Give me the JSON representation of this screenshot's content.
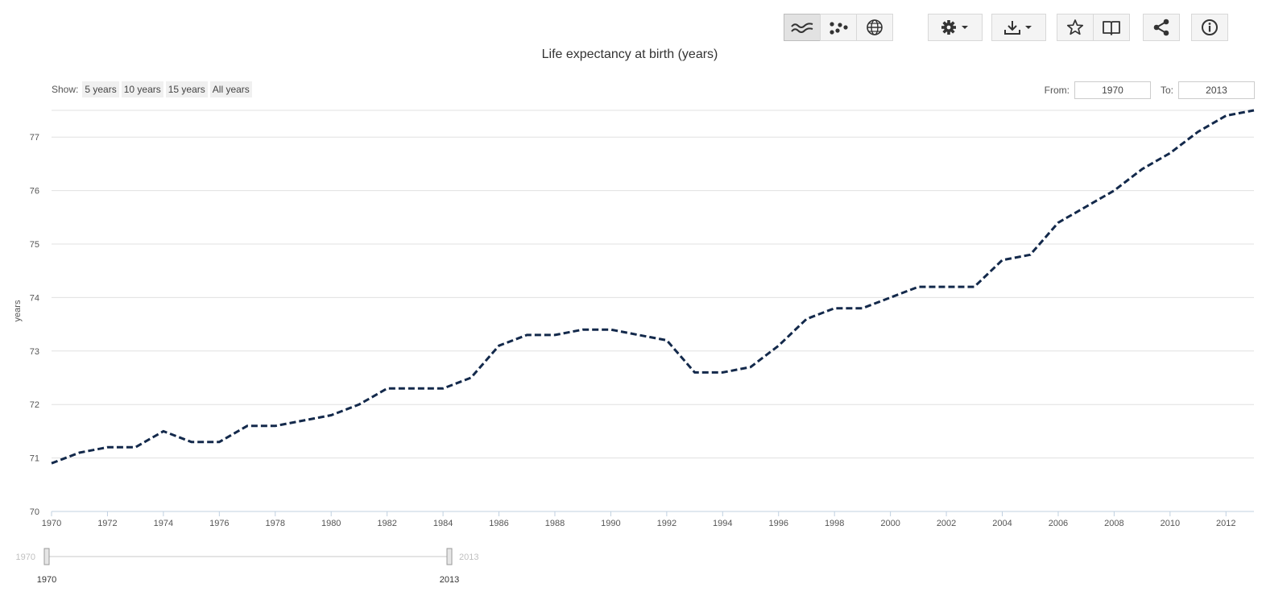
{
  "toolbar": {
    "view_buttons": [
      {
        "icon": "line-chart-icon",
        "active": true
      },
      {
        "icon": "scatter-icon",
        "active": false
      },
      {
        "icon": "globe-icon",
        "active": false
      }
    ],
    "settings_icon": "gear-icon",
    "download_icon": "download-icon",
    "favorite_icon": "star-icon",
    "book_icon": "book-icon",
    "share_icon": "share-icon",
    "info_icon": "info-icon"
  },
  "show": {
    "label": "Show:",
    "options": [
      "5 years",
      "10 years",
      "15 years",
      "All years"
    ]
  },
  "range": {
    "from_label": "From:",
    "from_value": "1970",
    "to_label": "To:",
    "to_value": "2013"
  },
  "navigator": {
    "min_label": "1970",
    "max_label": "2013",
    "start_label": "1970",
    "end_label": "2013"
  },
  "colors": {
    "line": "#13294b",
    "grid": "#e0e0e0",
    "axis": "#c0d0e0"
  },
  "chart_data": {
    "type": "line",
    "title": "Life expectancy at birth (years)",
    "xlabel": "",
    "ylabel": "years",
    "xlim": [
      1970,
      2013
    ],
    "ylim": [
      70,
      77.5
    ],
    "yticks": [
      70,
      71,
      72,
      73,
      74,
      75,
      76,
      77
    ],
    "xticks": [
      1970,
      1972,
      1974,
      1976,
      1978,
      1980,
      1982,
      1984,
      1986,
      1988,
      1990,
      1992,
      1994,
      1996,
      1998,
      2000,
      2002,
      2004,
      2006,
      2008,
      2010,
      2012
    ],
    "grid": true,
    "line_style": "dashed",
    "series": [
      {
        "x": [
          1970,
          1971,
          1972,
          1973,
          1974,
          1975,
          1976,
          1977,
          1978,
          1979,
          1980,
          1981,
          1982,
          1983,
          1984,
          1985,
          1986,
          1987,
          1988,
          1989,
          1990,
          1991,
          1992,
          1993,
          1994,
          1995,
          1996,
          1997,
          1998,
          1999,
          2000,
          2001,
          2002,
          2003,
          2004,
          2005,
          2006,
          2007,
          2008,
          2009,
          2010,
          2011,
          2012,
          2013
        ],
        "values": [
          70.9,
          71.1,
          71.2,
          71.2,
          71.5,
          71.3,
          71.3,
          71.6,
          71.6,
          71.7,
          71.8,
          72.0,
          72.3,
          72.3,
          72.3,
          72.5,
          73.1,
          73.3,
          73.3,
          73.4,
          73.4,
          73.3,
          73.2,
          72.6,
          72.6,
          72.7,
          73.1,
          73.6,
          73.8,
          73.8,
          74.0,
          74.2,
          74.2,
          74.2,
          74.7,
          74.8,
          75.4,
          75.7,
          76.0,
          76.4,
          76.7,
          77.1,
          77.4,
          77.5
        ]
      }
    ]
  }
}
